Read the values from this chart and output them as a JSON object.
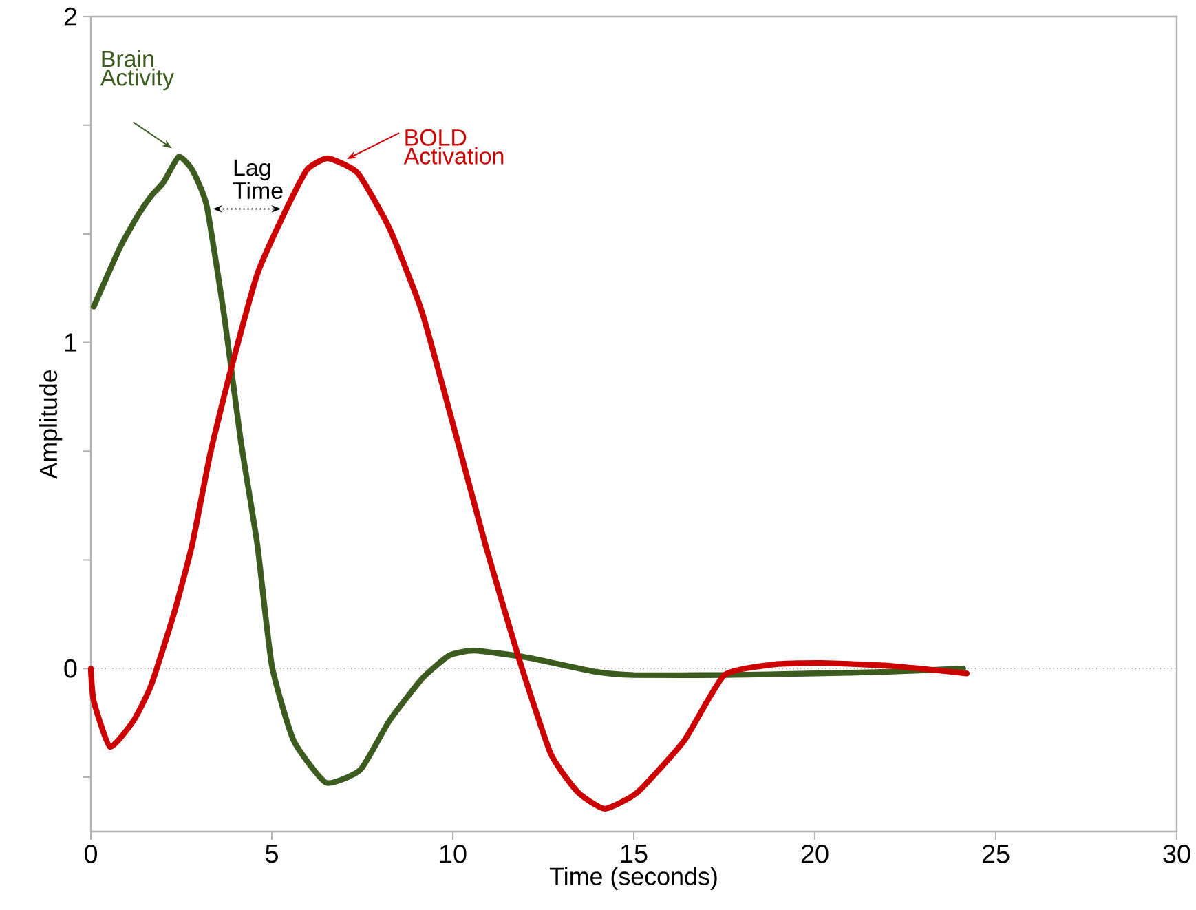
{
  "chart_data": {
    "type": "line",
    "xlabel": "Time (seconds)",
    "ylabel": "Amplitude",
    "xlim": [
      0,
      30
    ],
    "xticks": [
      0,
      5,
      10,
      15,
      20,
      25,
      30
    ],
    "ylim": [
      -0.5,
      2
    ],
    "yticks": [
      {
        "value": -0.333,
        "label": null
      },
      0,
      {
        "value": 0.333,
        "label": null
      },
      {
        "value": 0.667,
        "label": null
      },
      1,
      {
        "value": 1.333,
        "label": null
      },
      {
        "value": 1.667,
        "label": null
      },
      2
    ],
    "grid": false,
    "marker": "none",
    "line_style": "solid",
    "ref_lines": [
      {
        "axis": "y",
        "value": 0,
        "color": "#888888",
        "line_style": "dotted"
      }
    ],
    "annotations": [
      {
        "text": "Brain Activity",
        "x": 2.43,
        "y": 1.57
      },
      {
        "text": "BOLD Activation",
        "x": 7.0,
        "y": 1.55
      },
      "Lag Time"
    ],
    "series": [
      {
        "color": "#3b5b1f",
        "x": [
          0.08,
          0.8,
          1.3,
          1.67,
          2.0,
          2.43,
          2.8,
          3.2,
          3.7,
          4.14,
          4.6,
          5.0,
          5.6,
          6.5,
          7.45,
          8.25,
          9.16,
          9.9,
          10.6,
          12.05,
          13.95,
          15.0,
          17.5,
          20.0,
          22.0,
          24.1
        ],
        "values": [
          1.11,
          1.29,
          1.39,
          1.45,
          1.49,
          1.57,
          1.53,
          1.42,
          1.07,
          0.7,
          0.38,
          0.01,
          -0.22,
          -0.35,
          -0.31,
          -0.16,
          -0.03,
          0.04,
          0.055,
          0.034,
          -0.01,
          -0.02,
          -0.02,
          -0.015,
          -0.01,
          0.0
        ]
      },
      {
        "color": "#cc0000",
        "x": [
          0,
          0.08,
          0.53,
          1.18,
          1.67,
          2.3,
          2.8,
          3.3,
          3.83,
          4.6,
          5.36,
          5.97,
          6.55,
          7.37,
          8.25,
          9.16,
          10.15,
          10.9,
          11.8,
          12.7,
          13.46,
          14.2,
          15.1,
          16.4,
          17.5,
          18.9,
          20.2,
          22.1,
          24.2
        ],
        "values": [
          0,
          -0.1,
          -0.24,
          -0.16,
          -0.05,
          0.17,
          0.38,
          0.66,
          0.9,
          1.21,
          1.4,
          1.53,
          1.565,
          1.52,
          1.35,
          1.09,
          0.69,
          0.38,
          0.04,
          -0.26,
          -0.38,
          -0.43,
          -0.38,
          -0.22,
          -0.02,
          0.013,
          0.017,
          0.008,
          -0.015
        ]
      }
    ]
  }
}
